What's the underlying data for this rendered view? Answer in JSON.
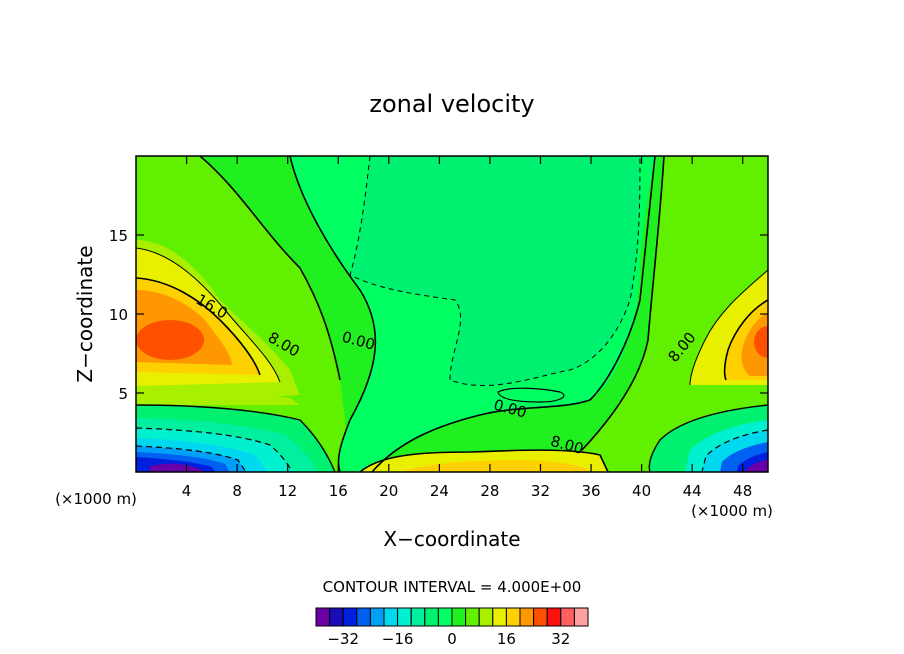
{
  "chart_data": {
    "type": "contour",
    "title": "zonal velocity",
    "xlabel": "X−coordinate",
    "ylabel": "Z−coordinate",
    "x_unit_left": "(×1000 m)",
    "x_unit_right": "(×1000 m)",
    "xlim": [
      0,
      50
    ],
    "ylim": [
      0,
      20
    ],
    "x_ticks": [
      4,
      8,
      12,
      16,
      20,
      24,
      28,
      32,
      36,
      40,
      44,
      48
    ],
    "x_tick_labels": [
      "4",
      "8",
      "12",
      "16",
      "20",
      "24",
      "28",
      "32",
      "36",
      "40",
      "44",
      "48"
    ],
    "y_ticks": [
      5,
      10,
      15
    ],
    "y_tick_labels": [
      "5",
      "10",
      "15"
    ],
    "contour_interval_text": "CONTOUR INTERVAL = 4.000E+00",
    "contour_labels": [
      {
        "text": "16.0",
        "x": 5.8,
        "y": 10.2
      },
      {
        "text": "8.00",
        "x": 11.5,
        "y": 7.8
      },
      {
        "text": "0.00",
        "x": 17.5,
        "y": 8.0
      },
      {
        "text": "0.00",
        "x": 29.5,
        "y": 3.7
      },
      {
        "text": "8.00",
        "x": 34.0,
        "y": 1.4
      },
      {
        "text": "8.00",
        "x": 43.5,
        "y": 7.7
      }
    ],
    "colorbar": {
      "levels": [
        -36,
        -32,
        -28,
        -24,
        -20,
        -16,
        -12,
        -8,
        -4,
        0,
        4,
        8,
        12,
        16,
        20,
        24,
        28,
        32,
        36
      ],
      "tick_values": [
        -32,
        -16,
        0,
        16,
        32
      ],
      "tick_labels": [
        "−32",
        "−16",
        "0",
        "16",
        "32"
      ],
      "colors": [
        "#6a00a8",
        "#1a0cb8",
        "#0020e0",
        "#0060f0",
        "#00a0f8",
        "#00d8f0",
        "#00f0d0",
        "#00f0a0",
        "#00f070",
        "#00ff60",
        "#20f020",
        "#60f000",
        "#a8f000",
        "#e8f000",
        "#ffd000",
        "#ff9800",
        "#ff5000",
        "#ff1010",
        "#ff6060",
        "#ffa0a0"
      ]
    }
  }
}
